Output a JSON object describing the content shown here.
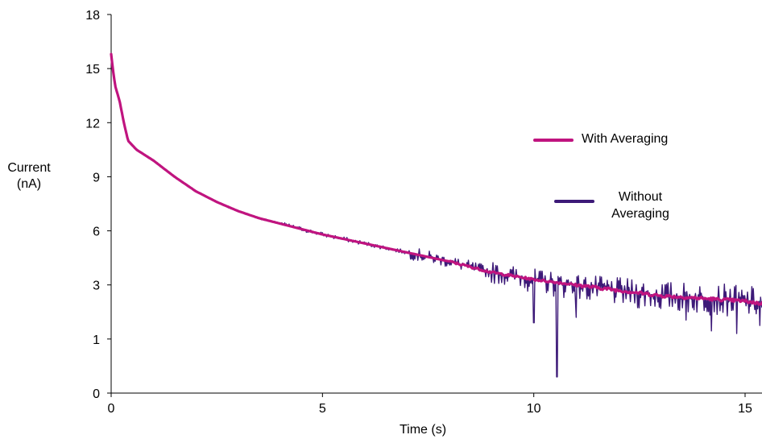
{
  "chart_data": {
    "type": "line",
    "xlabel": "Time (s)",
    "ylabel_line1": "Current",
    "ylabel_line2": "(nA)",
    "xlim": [
      0,
      15.4
    ],
    "x_ticks": [
      0,
      5,
      10,
      15
    ],
    "x_tick_labels": [
      "0",
      "5",
      "10",
      "15"
    ],
    "y_tick_labels": [
      "0",
      "1",
      "3",
      "6",
      "9",
      "12",
      "15",
      "18"
    ],
    "y_tick_note": "axis is nonlinear below 3: tick labels 0 and 1 sit at equal spacing with the others",
    "legend_placement": "right",
    "grid": false,
    "series": [
      {
        "name": "Without Averaging",
        "color": "#3d1a78",
        "note": "noisy raw trace following the averaged curve, with noise growing after ~7 s",
        "anchors": {
          "x": [
            0,
            0.05,
            0.1,
            0.2,
            0.3,
            0.4,
            0.6,
            0.8,
            1,
            1.5,
            2,
            2.5,
            3,
            3.5,
            4,
            4.5,
            5,
            6,
            7,
            8,
            9,
            10,
            11,
            12,
            13,
            14,
            15,
            15.4
          ],
          "y": [
            15.8,
            14.8,
            14.0,
            13.2,
            12.0,
            11.0,
            10.5,
            10.2,
            9.9,
            9.0,
            8.2,
            7.6,
            7.1,
            6.7,
            6.4,
            6.1,
            5.8,
            5.3,
            4.8,
            4.3,
            3.7,
            3.3,
            3.0,
            2.8,
            2.6,
            2.5,
            2.4,
            2.3
          ]
        },
        "notable_dips": [
          {
            "x": 10.0,
            "y": 1.6
          },
          {
            "x": 10.55,
            "y": 0.3
          },
          {
            "x": 11.0,
            "y": 1.8
          },
          {
            "x": 13.6,
            "y": 1.7
          },
          {
            "x": 14.2,
            "y": 1.3
          },
          {
            "x": 14.8,
            "y": 1.2
          },
          {
            "x": 15.35,
            "y": 1.5
          }
        ]
      },
      {
        "name": "With Averaging",
        "color": "#c0147f",
        "x": [
          0,
          0.05,
          0.1,
          0.2,
          0.3,
          0.4,
          0.6,
          0.8,
          1,
          1.5,
          2,
          2.5,
          3,
          3.5,
          4,
          4.5,
          5,
          6,
          7,
          8,
          9,
          10,
          11,
          12,
          13,
          14,
          15,
          15.4
        ],
        "y": [
          15.8,
          14.8,
          14.0,
          13.2,
          12.0,
          11.0,
          10.5,
          10.2,
          9.9,
          9.0,
          8.2,
          7.6,
          7.1,
          6.7,
          6.4,
          6.1,
          5.8,
          5.3,
          4.8,
          4.3,
          3.7,
          3.3,
          3.0,
          2.8,
          2.6,
          2.5,
          2.4,
          2.3
        ]
      }
    ]
  }
}
